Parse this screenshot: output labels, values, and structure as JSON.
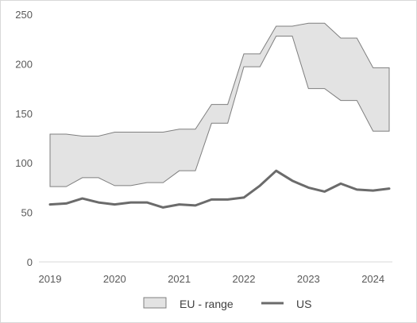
{
  "chart_data": {
    "type": "area",
    "title": "",
    "xlabel": "",
    "ylabel": "",
    "xlim": [
      2019,
      2024.35
    ],
    "ylim": [
      0,
      250
    ],
    "yticks": [
      0,
      50,
      100,
      150,
      200,
      250
    ],
    "xticks": [
      2019,
      2020,
      2021,
      2022,
      2023,
      2024
    ],
    "grid": false,
    "legend_position": "bottom",
    "series": [
      {
        "name": "EU - range",
        "style": "range-band",
        "color": "#e3e3e3",
        "edge_color": "#7f7f7f",
        "x": [
          2019,
          2019.25,
          2019.5,
          2019.75,
          2020,
          2020.25,
          2020.5,
          2020.75,
          2021,
          2021.25,
          2021.5,
          2021.75,
          2022,
          2022.25,
          2022.5,
          2022.75,
          2023,
          2023.25,
          2023.5,
          2023.75,
          2024,
          2024.25
        ],
        "upper": [
          129,
          129,
          127,
          127,
          131,
          131,
          131,
          131,
          134,
          134,
          159,
          159,
          210,
          210,
          238,
          238,
          241,
          241,
          226,
          226,
          196,
          196
        ],
        "lower": [
          76,
          76,
          85,
          85,
          77,
          77,
          80,
          80,
          92,
          92,
          140,
          140,
          197,
          197,
          228,
          228,
          175,
          175,
          163,
          163,
          132,
          132
        ]
      },
      {
        "name": "US",
        "style": "line",
        "color": "#6b6b6b",
        "x": [
          2019,
          2019.25,
          2019.5,
          2019.75,
          2020,
          2020.25,
          2020.5,
          2020.75,
          2021,
          2021.25,
          2021.5,
          2021.75,
          2022,
          2022.25,
          2022.5,
          2022.75,
          2023,
          2023.25,
          2023.5,
          2023.75,
          2024,
          2024.25
        ],
        "values": [
          58,
          59,
          64,
          60,
          58,
          60,
          60,
          55,
          58,
          57,
          63,
          63,
          65,
          77,
          92,
          82,
          75,
          71,
          79,
          73,
          72,
          74
        ]
      }
    ]
  }
}
